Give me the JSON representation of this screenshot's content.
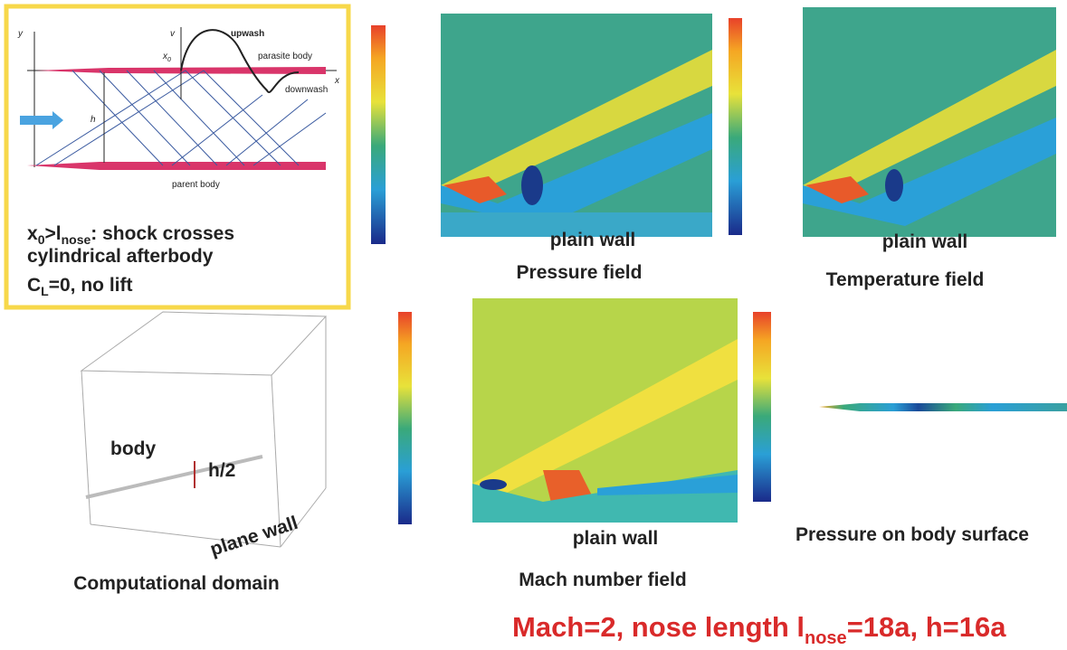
{
  "schematic": {
    "axis_y": "y",
    "axis_v": "v",
    "x0": "x",
    "x0_sub": "0",
    "upwash": "upwash",
    "parasite_body": "parasite body",
    "downwash": "downwash",
    "axis_x": "x",
    "h": "h",
    "parent_body": "parent body"
  },
  "caption": {
    "line1": {
      "a": "x",
      "a_sub": "0",
      "b": ">l",
      "b_sub": "nose",
      "c": ": shock crosses"
    },
    "line2": "cylindrical afterbody",
    "line3": {
      "a": "C",
      "a_sub": "L",
      "b": "=0, no lift"
    }
  },
  "pressure": {
    "wall": "plain wall",
    "title": "Pressure field"
  },
  "temperature": {
    "wall": "plain wall",
    "title": "Temperature field"
  },
  "domain": {
    "body": "body",
    "half_h": "h/2",
    "wall": "plane wall",
    "title": "Computational domain"
  },
  "mach": {
    "wall": "plain wall",
    "title": "Mach number field"
  },
  "surface": {
    "title": "Pressure on body surface"
  },
  "footer": {
    "a": "Mach=2, nose length l",
    "a_sub": "nose",
    "b": "=18a, h=16a"
  }
}
